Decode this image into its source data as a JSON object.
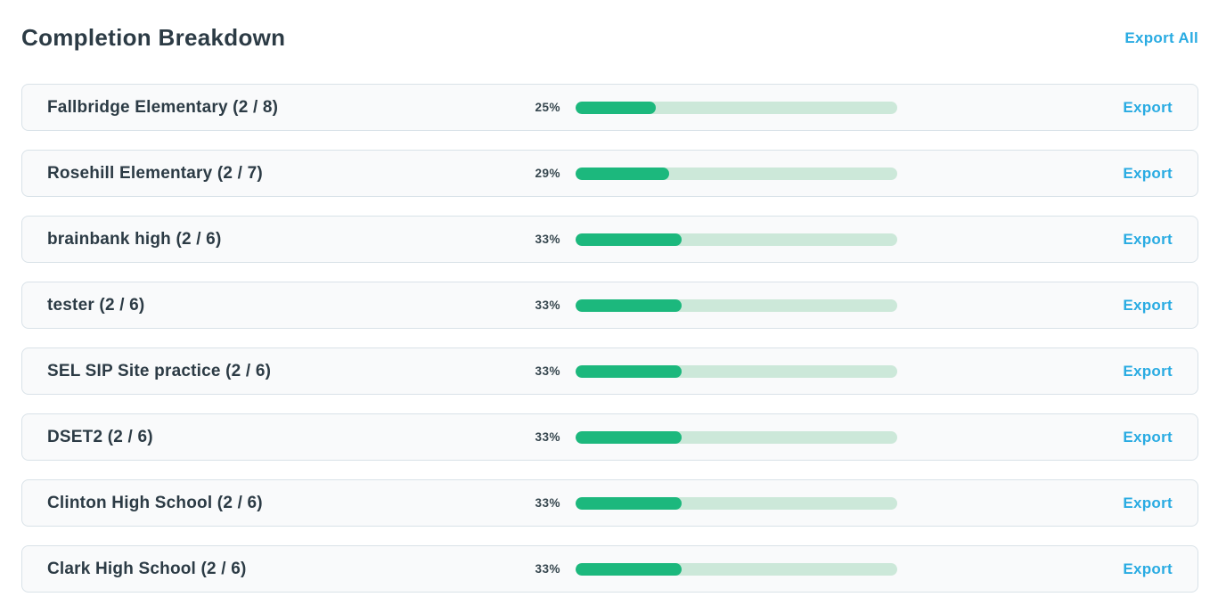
{
  "header": {
    "title": "Completion Breakdown",
    "export_all_label": "Export All"
  },
  "list": {
    "export_label": "Export"
  },
  "colors": {
    "accent_blue": "#29abe2",
    "progress_fill_green": "#1cb87d",
    "progress_track_green": "#cce8d9",
    "text_dark": "#2c3b45",
    "card_background": "#f9fafb",
    "card_border": "#d9e2e8"
  },
  "chart_data": {
    "type": "bar",
    "title": "Completion Breakdown",
    "categories": [
      "Fallbridge Elementary (2 / 8)",
      "Rosehill Elementary (2 / 7)",
      "brainbank high (2 / 6)",
      "tester (2 / 6)",
      "SEL SIP Site practice (2 / 6)",
      "DSET2 (2 / 6)",
      "Clinton High School (2 / 6)",
      "Clark High School (2 / 6)"
    ],
    "values": [
      25,
      29,
      33,
      33,
      33,
      33,
      33,
      33
    ],
    "value_labels": [
      "25%",
      "29%",
      "33%",
      "33%",
      "33%",
      "33%",
      "33%",
      "33%"
    ],
    "xlim": [
      0,
      100
    ]
  },
  "rows": [
    {
      "name": "Fallbridge Elementary (2 / 8)",
      "percent": 25,
      "percent_label": "25%"
    },
    {
      "name": "Rosehill Elementary (2 / 7)",
      "percent": 29,
      "percent_label": "29%"
    },
    {
      "name": "brainbank high (2 / 6)",
      "percent": 33,
      "percent_label": "33%"
    },
    {
      "name": "tester (2 / 6)",
      "percent": 33,
      "percent_label": "33%"
    },
    {
      "name": "SEL SIP Site practice (2 / 6)",
      "percent": 33,
      "percent_label": "33%"
    },
    {
      "name": "DSET2 (2 / 6)",
      "percent": 33,
      "percent_label": "33%"
    },
    {
      "name": "Clinton High School (2 / 6)",
      "percent": 33,
      "percent_label": "33%"
    },
    {
      "name": "Clark High School (2 / 6)",
      "percent": 33,
      "percent_label": "33%"
    }
  ]
}
